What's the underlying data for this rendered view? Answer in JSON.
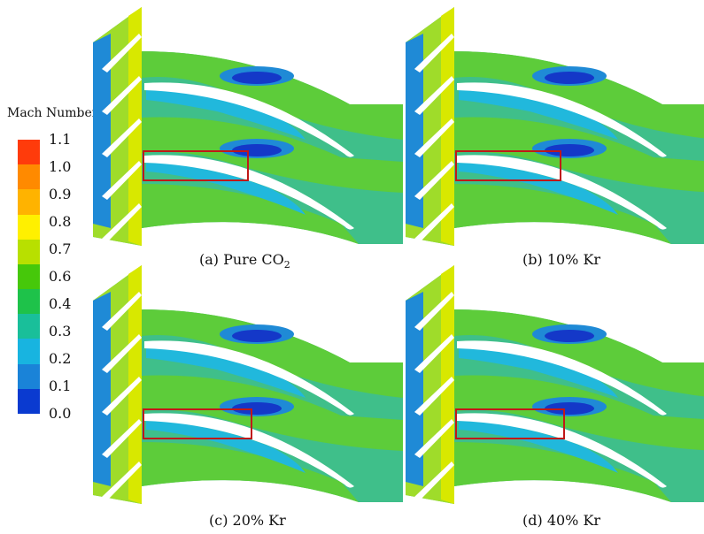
{
  "legend": {
    "title": "Mach Number",
    "ticks": [
      "1.1",
      "1.0",
      "0.9",
      "0.8",
      "0.7",
      "0.6",
      "0.4",
      "0.3",
      "0.2",
      "0.1",
      "0.0"
    ],
    "colors": [
      "#ff3b0b",
      "#ff8a00",
      "#ffb300",
      "#fff000",
      "#b8e000",
      "#46c80a",
      "#1ec24a",
      "#19bf9a",
      "#18b4e0",
      "#1a83d8",
      "#0a3ad0"
    ]
  },
  "field_colors": {
    "background": "#3fbf8a",
    "green": "#5dcc3a",
    "light_green": "#9fdc2a",
    "yellow": "#d8e800",
    "cyan": "#21b8dc",
    "light_blue": "#1f8ad6",
    "deep_blue": "#1438c8",
    "blade": "#ffffff",
    "highlight_box": "#c01818"
  },
  "panels": [
    {
      "caption": "(a) Pure CO",
      "subscript": "2"
    },
    {
      "caption": "(b) 10% Kr",
      "subscript": ""
    },
    {
      "caption": "(c) 20% Kr",
      "subscript": ""
    },
    {
      "caption": "(d) 40% Kr",
      "subscript": ""
    }
  ]
}
